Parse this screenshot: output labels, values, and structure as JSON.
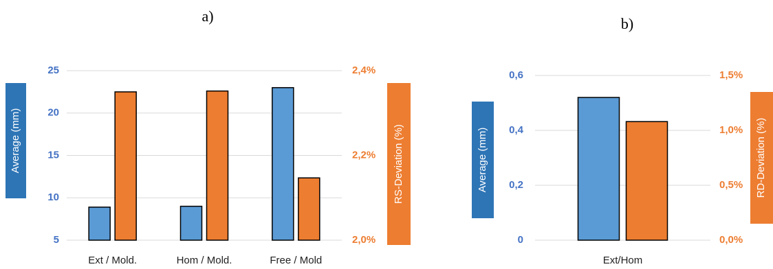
{
  "colors": {
    "series1": "#5b9bd5",
    "series2": "#ed7d31",
    "left_axis": "#4472c4",
    "right_axis": "#ed7d31"
  },
  "chart_data": [
    {
      "type": "bar",
      "panel_label": "a)",
      "categories": [
        "Ext / Mold.",
        "Hom / Mold.",
        "Free / Mold"
      ],
      "series": [
        {
          "axis": "left",
          "values": [
            8.9,
            9.0,
            23.0
          ]
        },
        {
          "axis": "right",
          "values": [
            2.35,
            2.352,
            2.147
          ]
        }
      ],
      "ylabel": "Average (mm)",
      "y2label": "RS-Deviation (%)",
      "ylim": [
        5,
        25
      ],
      "yticks": [
        5,
        10,
        15,
        20,
        25
      ],
      "ytick_labels": [
        "5",
        "10",
        "15",
        "20",
        "25"
      ],
      "y2lim": [
        2.0,
        2.4
      ],
      "y2ticks": [
        2.0,
        2.2,
        2.4
      ],
      "y2tick_labels": [
        "2,0%",
        "2,2%",
        "2,4%"
      ],
      "grid": true
    },
    {
      "type": "bar",
      "panel_label": "b)",
      "categories": [
        "Ext/Hom"
      ],
      "series": [
        {
          "axis": "left",
          "values": [
            0.52
          ]
        },
        {
          "axis": "right",
          "values": [
            1.08
          ]
        }
      ],
      "ylabel": "Average (mm)",
      "y2label": "RD-Deviation (%)",
      "ylim": [
        0,
        0.6
      ],
      "yticks": [
        0,
        0.2,
        0.4,
        0.6
      ],
      "ytick_labels": [
        "0",
        "0,2",
        "0,4",
        "0,6"
      ],
      "y2lim": [
        0,
        1.5
      ],
      "y2ticks": [
        0,
        0.5,
        1.0,
        1.5
      ],
      "y2tick_labels": [
        "0,0%",
        "0,5%",
        "1,0%",
        "1,5%"
      ],
      "grid": true
    }
  ]
}
